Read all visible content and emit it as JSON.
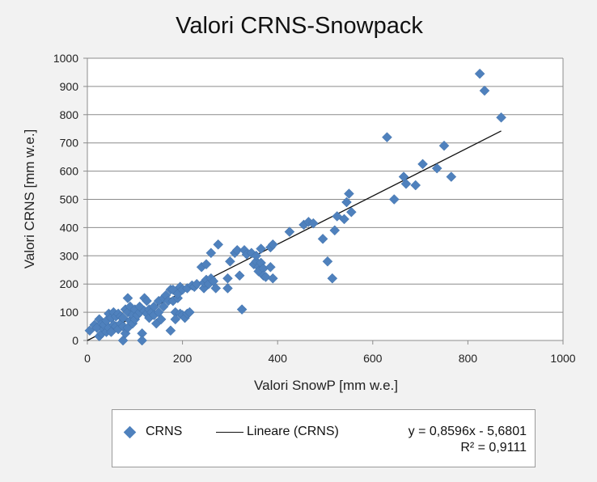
{
  "chart_data": {
    "type": "scatter",
    "title": "Valori CRNS-Snowpack",
    "xlabel": "Valori SnowP [mm w.e.]",
    "ylabel": "Valori CRNS [mm w.e.]",
    "xlim": [
      0,
      1000
    ],
    "ylim": [
      0,
      1000
    ],
    "xticks": [
      0,
      200,
      400,
      600,
      800,
      1000
    ],
    "yticks": [
      0,
      100,
      200,
      300,
      400,
      500,
      600,
      700,
      800,
      900,
      1000
    ],
    "xtick_labels": [
      "0",
      "200",
      "400",
      "600",
      "800",
      "1000"
    ],
    "ytick_labels": [
      "0",
      "100",
      "200",
      "300",
      "400",
      "500",
      "600",
      "700",
      "800",
      "900",
      "1000"
    ],
    "grid": "horizontal",
    "series": [
      {
        "name": "CRNS",
        "color": "#4f81bd",
        "marker": "diamond",
        "x": [
          5,
          15,
          20,
          25,
          25,
          30,
          30,
          35,
          35,
          40,
          40,
          45,
          45,
          50,
          50,
          55,
          55,
          60,
          60,
          65,
          65,
          70,
          70,
          75,
          75,
          75,
          80,
          80,
          85,
          85,
          85,
          90,
          90,
          95,
          95,
          100,
          100,
          105,
          110,
          110,
          115,
          115,
          120,
          120,
          125,
          125,
          130,
          130,
          135,
          140,
          140,
          145,
          150,
          150,
          155,
          160,
          160,
          165,
          170,
          175,
          175,
          180,
          180,
          185,
          185,
          190,
          190,
          195,
          195,
          200,
          200,
          205,
          210,
          210,
          215,
          220,
          225,
          230,
          240,
          245,
          245,
          250,
          250,
          255,
          260,
          260,
          265,
          270,
          275,
          295,
          295,
          300,
          310,
          315,
          320,
          325,
          330,
          335,
          345,
          350,
          355,
          355,
          360,
          360,
          365,
          365,
          370,
          370,
          375,
          385,
          385,
          390,
          390,
          425,
          455,
          465,
          475,
          495,
          505,
          515,
          520,
          525,
          540,
          545,
          550,
          555,
          630,
          645,
          665,
          670,
          690,
          705,
          735,
          750,
          765,
          825,
          835,
          870
        ],
        "y": [
          35,
          55,
          45,
          75,
          15,
          25,
          60,
          40,
          55,
          30,
          70,
          45,
          95,
          30,
          80,
          55,
          100,
          50,
          85,
          40,
          95,
          60,
          85,
          0,
          50,
          80,
          25,
          110,
          45,
          100,
          150,
          70,
          120,
          60,
          90,
          75,
          110,
          90,
          100,
          120,
          25,
          0,
          105,
          150,
          95,
          140,
          110,
          80,
          100,
          120,
          90,
          60,
          100,
          140,
          75,
          120,
          150,
          160,
          140,
          35,
          180,
          140,
          180,
          100,
          75,
          150,
          165,
          95,
          190,
          90,
          180,
          80,
          185,
          95,
          100,
          195,
          190,
          200,
          260,
          185,
          205,
          215,
          270,
          200,
          220,
          310,
          210,
          185,
          340,
          220,
          185,
          280,
          310,
          320,
          230,
          110,
          320,
          305,
          310,
          270,
          280,
          300,
          260,
          245,
          275,
          325,
          255,
          230,
          225,
          330,
          260,
          220,
          340,
          385,
          410,
          420,
          415,
          360,
          280,
          220,
          390,
          440,
          430,
          490,
          520,
          455,
          720,
          500,
          580,
          555,
          550,
          625,
          610,
          690,
          580,
          945,
          885,
          790
        ]
      }
    ],
    "trendline": {
      "name": "Lineare (CRNS)",
      "slope": 0.8596,
      "intercept": -5.6801,
      "x_range": [
        0,
        870
      ],
      "color": "#111111"
    }
  },
  "legend": {
    "series_label": "CRNS",
    "trend_label": "Lineare (CRNS)",
    "equation": "y = 0,8596x - 5,6801",
    "r_squared": "R² = 0,9111"
  }
}
